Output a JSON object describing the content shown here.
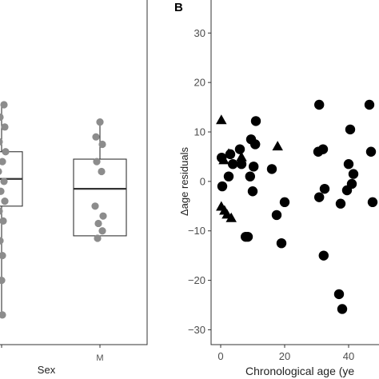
{
  "chart_data": [
    {
      "type": "box",
      "panel": "",
      "xlabel": "Sex",
      "ylabel": "",
      "categories": [
        "",
        "M"
      ],
      "ylim": [
        -33,
        37
      ],
      "boxes": [
        {
          "category": "",
          "q1": -5,
          "median": 0.5,
          "q3": 6,
          "whisker_low": -27,
          "whisker_high": 16
        },
        {
          "category": "M",
          "q1": -11,
          "median": -1.5,
          "q3": 4.5,
          "whisker_low": -12,
          "whisker_high": 12
        }
      ],
      "points": [
        {
          "category": "",
          "y": 15.5
        },
        {
          "category": "",
          "y": 13
        },
        {
          "category": "",
          "y": 11
        },
        {
          "category": "",
          "y": 8
        },
        {
          "category": "",
          "y": 6
        },
        {
          "category": "",
          "y": 4
        },
        {
          "category": "",
          "y": 2
        },
        {
          "category": "",
          "y": 0
        },
        {
          "category": "",
          "y": -2
        },
        {
          "category": "",
          "y": -4
        },
        {
          "category": "",
          "y": -6
        },
        {
          "category": "",
          "y": -8
        },
        {
          "category": "",
          "y": -12
        },
        {
          "category": "",
          "y": -15
        },
        {
          "category": "",
          "y": -20
        },
        {
          "category": "",
          "y": -27
        },
        {
          "category": "M",
          "y": 12
        },
        {
          "category": "M",
          "y": 9
        },
        {
          "category": "M",
          "y": 7.5
        },
        {
          "category": "M",
          "y": 4
        },
        {
          "category": "M",
          "y": 2
        },
        {
          "category": "M",
          "y": -5
        },
        {
          "category": "M",
          "y": -7
        },
        {
          "category": "M",
          "y": -8.5
        },
        {
          "category": "M",
          "y": -10
        },
        {
          "category": "M",
          "y": -11.5
        }
      ],
      "point_color": "#8c8c8c"
    },
    {
      "type": "scatter",
      "panel": "B",
      "xlabel": "Chronological age (ye",
      "ylabel": "Δage residuals",
      "xlim": [
        -3,
        50
      ],
      "ylim": [
        -33,
        37
      ],
      "xticks": [
        0,
        20,
        40
      ],
      "yticks": [
        -30,
        -20,
        -10,
        0,
        10,
        20,
        30
      ],
      "series": [
        {
          "marker": "circle",
          "points": [
            [
              0.3,
              4.8
            ],
            [
              0.5,
              -1
            ],
            [
              2.5,
              1
            ],
            [
              3,
              5.5
            ],
            [
              3.8,
              3.5
            ],
            [
              6,
              6.5
            ],
            [
              6.5,
              3.5
            ],
            [
              7.8,
              -11.2
            ],
            [
              8.5,
              -11.2
            ],
            [
              9.2,
              1
            ],
            [
              9.5,
              8.5
            ],
            [
              10,
              -2
            ],
            [
              10.3,
              3
            ],
            [
              10.8,
              7.5
            ],
            [
              11,
              12.2
            ],
            [
              16,
              2.5
            ],
            [
              17.5,
              -6.8
            ],
            [
              19,
              -12.5
            ],
            [
              20,
              -4.2
            ],
            [
              30.8,
              15.5
            ],
            [
              30.5,
              6
            ],
            [
              30.8,
              -3.2
            ],
            [
              32,
              6.5
            ],
            [
              32.2,
              -15
            ],
            [
              32.5,
              -1.5
            ],
            [
              37,
              -22.8
            ],
            [
              37.5,
              -4.5
            ],
            [
              38,
              -25.8
            ],
            [
              39.5,
              -1.8
            ],
            [
              40,
              3.5
            ],
            [
              40.5,
              10.5
            ],
            [
              41,
              -0.5
            ],
            [
              41.5,
              1.5
            ],
            [
              46.5,
              15.5
            ],
            [
              47,
              6
            ],
            [
              47.5,
              -4.2
            ]
          ]
        },
        {
          "marker": "triangle",
          "points": [
            [
              0.2,
              12.3
            ],
            [
              0.2,
              -5.2
            ],
            [
              1,
              4.2
            ],
            [
              1.2,
              -6
            ],
            [
              2,
              -6.8
            ],
            [
              2.5,
              5.5
            ],
            [
              3.3,
              -7.5
            ],
            [
              6.5,
              4.8
            ],
            [
              17.8,
              7
            ]
          ]
        }
      ]
    }
  ]
}
